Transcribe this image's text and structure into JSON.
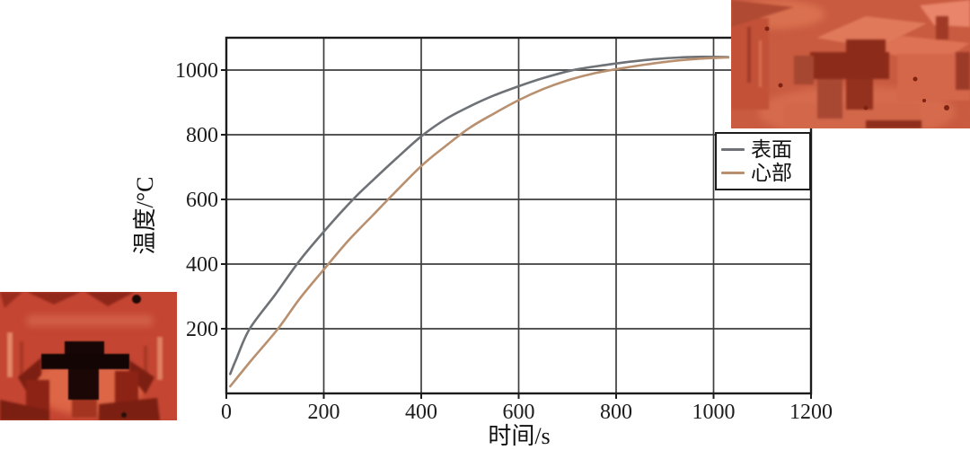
{
  "chart_data": {
    "type": "line",
    "title": "",
    "xlabel": "时间/s",
    "ylabel": "温度/°C",
    "xlim": [
      0,
      1200
    ],
    "ylim": [
      0,
      1100
    ],
    "xticks": [
      0,
      200,
      400,
      600,
      800,
      1000,
      1200
    ],
    "yticks": [
      200,
      400,
      600,
      800,
      1000
    ],
    "grid": true,
    "legend": {
      "position": "middle-right",
      "border": true
    },
    "series": [
      {
        "name": "表面",
        "color": "#6e7276",
        "points": [
          [
            8,
            60
          ],
          [
            20,
            105
          ],
          [
            48,
            200
          ],
          [
            100,
            305
          ],
          [
            150,
            410
          ],
          [
            200,
            500
          ],
          [
            260,
            600
          ],
          [
            300,
            658
          ],
          [
            350,
            728
          ],
          [
            400,
            795
          ],
          [
            450,
            848
          ],
          [
            500,
            888
          ],
          [
            550,
            922
          ],
          [
            600,
            950
          ],
          [
            650,
            975
          ],
          [
            712,
            1000
          ],
          [
            780,
            1016
          ],
          [
            830,
            1026
          ],
          [
            880,
            1034
          ],
          [
            930,
            1039
          ],
          [
            980,
            1041
          ],
          [
            1030,
            1040
          ]
        ]
      },
      {
        "name": "心部",
        "color": "#b8906f",
        "points": [
          [
            8,
            22
          ],
          [
            50,
            100
          ],
          [
            106,
            200
          ],
          [
            150,
            292
          ],
          [
            200,
            383
          ],
          [
            250,
            472
          ],
          [
            300,
            550
          ],
          [
            332,
            600
          ],
          [
            400,
            703
          ],
          [
            450,
            765
          ],
          [
            500,
            822
          ],
          [
            550,
            866
          ],
          [
            600,
            907
          ],
          [
            650,
            941
          ],
          [
            700,
            968
          ],
          [
            755,
            990
          ],
          [
            810,
            1005
          ],
          [
            860,
            1017
          ],
          [
            910,
            1027
          ],
          [
            960,
            1034
          ],
          [
            1010,
            1038
          ],
          [
            1030,
            1039
          ]
        ]
      }
    ]
  },
  "images": {
    "top_right": {
      "name": "furnace-interior-thermal-photo"
    },
    "bottom_left": {
      "name": "furnace-part-thermal-photo"
    }
  },
  "colors": {
    "grid": "#3e3e3e",
    "axis": "#1c1c1c",
    "background": "#ffffff"
  }
}
